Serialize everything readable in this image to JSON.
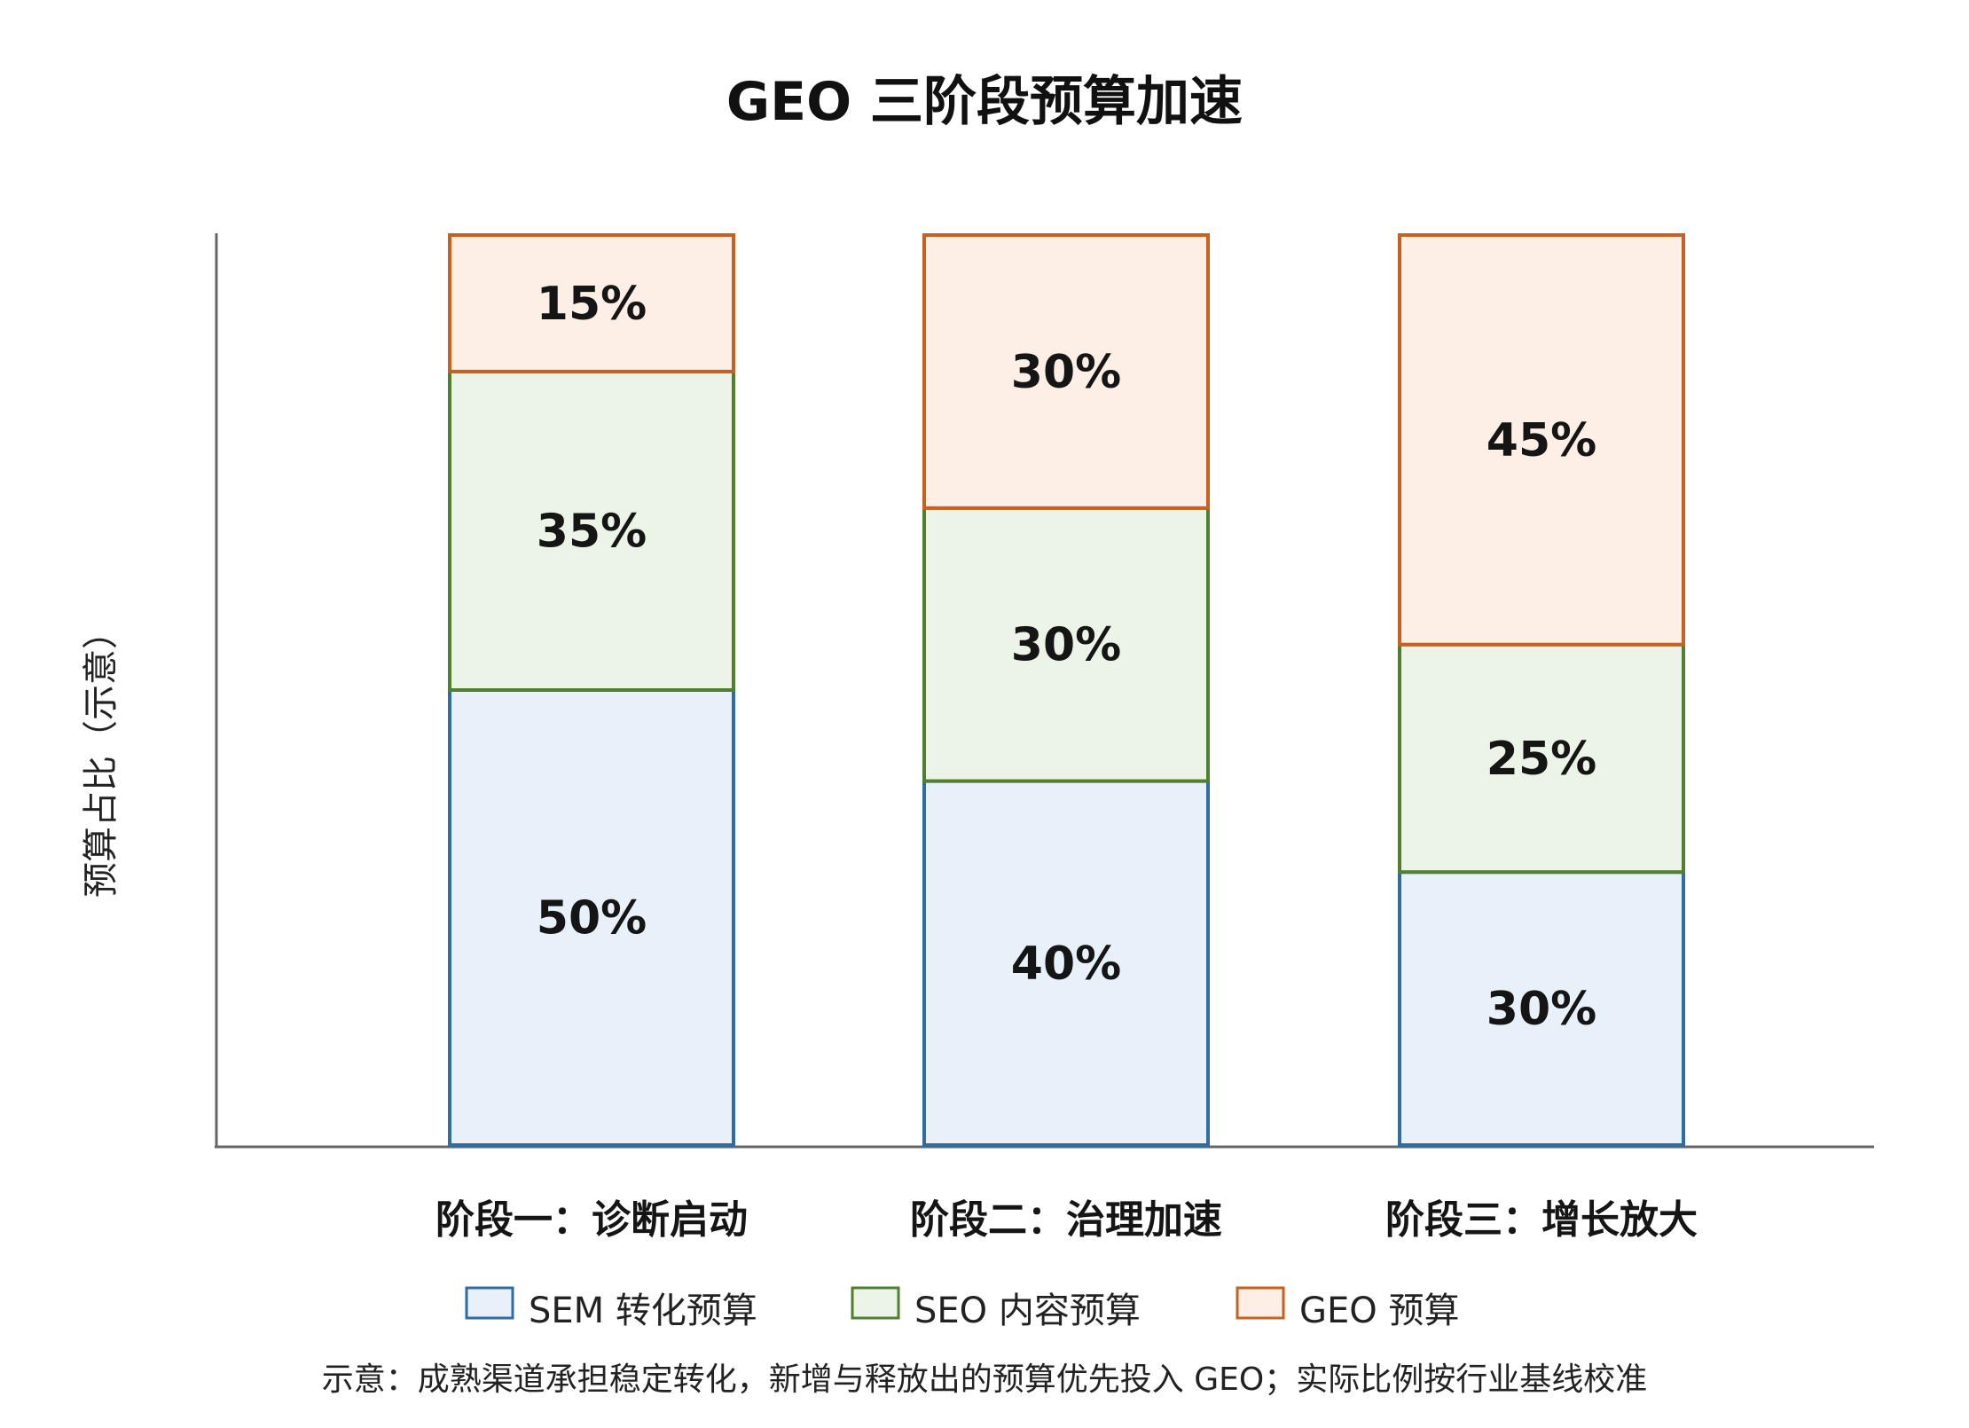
{
  "chart_data": {
    "type": "bar",
    "stacked": true,
    "title": "GEO 三阶段预算加速",
    "ylabel": "预算占比（示意）",
    "xlabel": "",
    "ylim": [
      0,
      100
    ],
    "grid": false,
    "categories": [
      "阶段一：诊断启动",
      "阶段二：治理加速",
      "阶段三：增长放大"
    ],
    "series": [
      {
        "name": "SEM 转化预算",
        "values": [
          50,
          40,
          30
        ],
        "labels": [
          "50%",
          "40%",
          "30%"
        ],
        "fill": "#e8f0fa",
        "stroke": "#2e6da4"
      },
      {
        "name": "SEO 内容预算",
        "values": [
          35,
          30,
          25
        ],
        "labels": [
          "35%",
          "30%",
          "25%"
        ],
        "fill": "#ebf4e6",
        "stroke": "#4f7f2f"
      },
      {
        "name": "GEO 预算",
        "values": [
          15,
          30,
          45
        ],
        "labels": [
          "15%",
          "30%",
          "45%"
        ],
        "fill": "#fdeee6",
        "stroke": "#c8601f"
      }
    ],
    "legend_position": "bottom",
    "note": "示意：成熟渠道承担稳定转化，新增与释放出的预算优先投入 GEO；实际比例按行业基线校准"
  }
}
